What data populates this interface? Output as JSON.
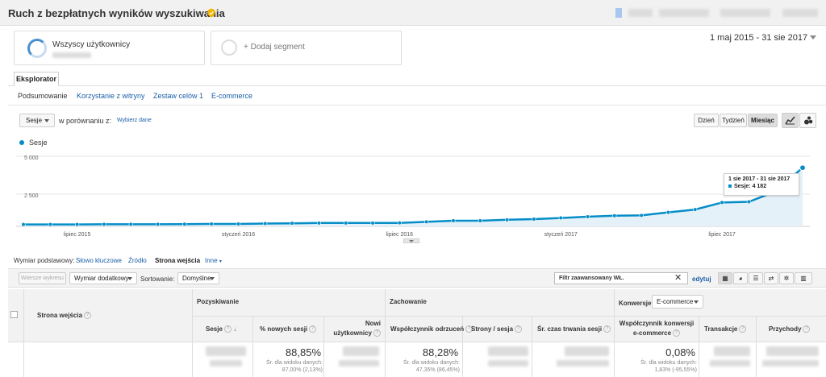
{
  "header": {
    "title": "Ruch z bezpłatnych wyników wyszukiwania",
    "date_range": "1 maj 2015 - 31 sie 2017"
  },
  "segments": {
    "active": "Wszyscy użytkownicy",
    "add": "+ Dodaj segment"
  },
  "explorer": {
    "tab": "Eksplorator",
    "subtabs": [
      "Podsumowanie",
      "Korzystanie z witryny",
      "Zestaw celów 1",
      "E-commerce"
    ]
  },
  "controls": {
    "metric": "Sesje",
    "compare_label": "w porównaniu z:",
    "choose_metric": "Wybierz dane",
    "periods": [
      "Dzień",
      "Tydzień",
      "Miesiąc"
    ]
  },
  "chart_data": {
    "type": "line",
    "series": [
      {
        "name": "Sesje",
        "values": [
          140,
          140,
          140,
          150,
          150,
          150,
          160,
          170,
          170,
          200,
          220,
          240,
          240,
          240,
          250,
          320,
          400,
          400,
          470,
          520,
          600,
          690,
          760,
          780,
          1000,
          1200,
          1700,
          1750,
          2500,
          4182
        ]
      }
    ],
    "x_tick_labels": [
      "lipiec 2015",
      "styczeń 2016",
      "lipiec 2016",
      "styczeń 2017",
      "lipiec 2017"
    ],
    "y_tick_labels": [
      "5 000",
      "2 500"
    ],
    "ylim": [
      0,
      5000
    ],
    "legend": "Sesje",
    "legend_position": "top-left",
    "grid": true,
    "color": "#058dc7",
    "tooltip": {
      "title": "1 sie 2017 - 31 sie 2017",
      "label": "Sesje: 4 182"
    }
  },
  "dimensions": {
    "label": "Wymiar podstawowy:",
    "items": [
      "Słowo kluczowe",
      "Źródło",
      "Strona wejścia",
      "Inne"
    ],
    "active": "Strona wejścia"
  },
  "toolbar": {
    "plot_rows": "Wiersze wykresu",
    "secondary_dimension": "Wymiar dodatkowy",
    "sort_label": "Sortowanie:",
    "sort_value": "Domyślne",
    "filter_value": "Filtr zaawansowany WŁ.",
    "edit": "edytuj"
  },
  "table": {
    "entry_page_header": "Strona wejścia",
    "groups": {
      "acquisition": "Pozyskiwanie",
      "behavior": "Zachowanie",
      "conversions": "Konwersje",
      "conversions_select": "E-commerce"
    },
    "columns": [
      "Sesje",
      "% nowych sesji",
      "Nowi użytkownicy",
      "Współczynnik odrzuceń",
      "Strony / sesja",
      "Śr. czas trwania sesji",
      "Współczynnik konwersji e-commerce",
      "Transakcje",
      "Przychody"
    ],
    "totals": {
      "new_sessions": "88,85%",
      "new_sessions_sub": "Śr. dla widoku danych: 87,00% (2,13%)",
      "bounce": "88,28%",
      "bounce_sub": "Śr. dla widoku danych: 47,35% (86,45%)",
      "ecom": "0,08%",
      "ecom_sub": "Śr. dla widoku danych: 1,83% (-95,55%)"
    }
  }
}
